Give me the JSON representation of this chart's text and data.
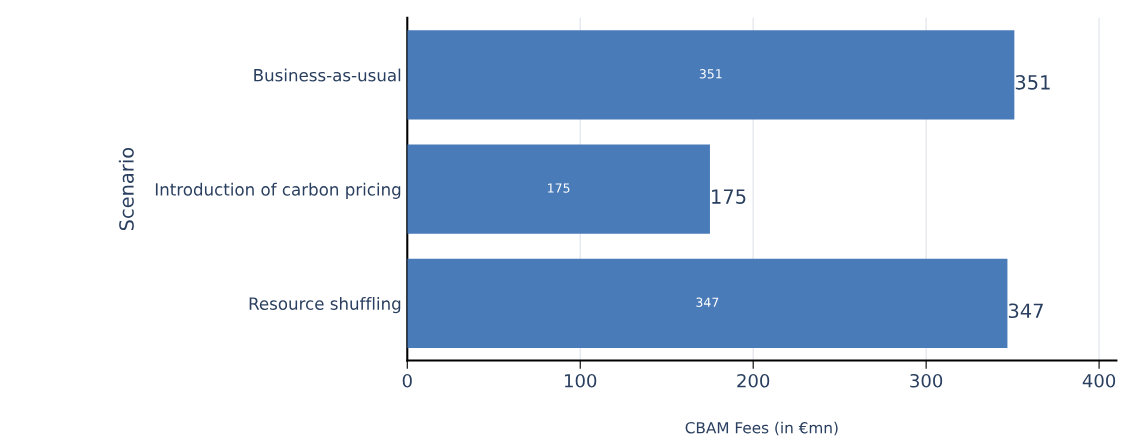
{
  "chart_data": {
    "type": "bar",
    "orientation": "horizontal",
    "categories": [
      "Business-as-usual",
      "Introduction of carbon pricing",
      "Resource shuffling"
    ],
    "values": [
      351,
      175,
      347
    ],
    "color": "#4a7bb9",
    "xlim": [
      0,
      410
    ],
    "xticks": [
      0,
      100,
      200,
      300,
      400
    ],
    "xlabel": "CBAM Fees (in €mn)",
    "ylabel": "Scenario",
    "grid": "x",
    "value_labels": [
      "351",
      "175",
      "347"
    ],
    "annotations": [
      {
        "text": "351",
        "x": 351,
        "y": "Business-as-usual"
      },
      {
        "text": "175",
        "x": 175,
        "y": "Introduction of carbon pricing"
      },
      {
        "text": "347",
        "x": 347,
        "y": "Resource shuffling"
      }
    ]
  }
}
